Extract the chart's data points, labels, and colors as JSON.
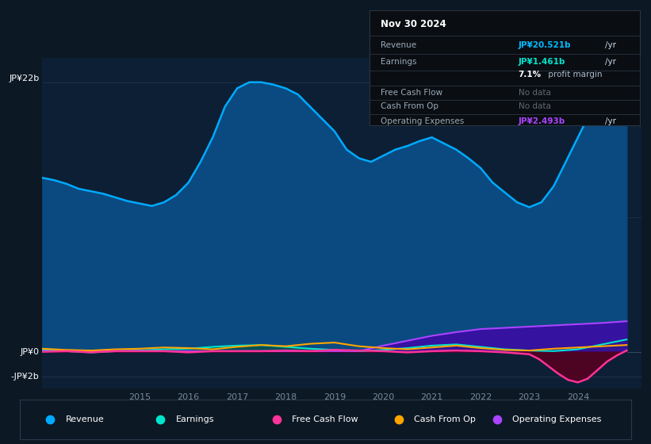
{
  "bg_color": "#0c1824",
  "plot_bg": "#0d1f35",
  "ylabel_top": "JP¥22b",
  "ylabel_zero": "JP¥0",
  "ylabel_neg": "-JP¥2b",
  "title_date": "Nov 30 2024",
  "x_ticks": [
    2015,
    2016,
    2017,
    2018,
    2019,
    2020,
    2021,
    2022,
    2023,
    2024
  ],
  "ylim_min": -3.0,
  "ylim_max": 24.0,
  "legend": [
    {
      "label": "Revenue",
      "color": "#00aaff"
    },
    {
      "label": "Earnings",
      "color": "#00e5cc"
    },
    {
      "label": "Free Cash Flow",
      "color": "#ff3399"
    },
    {
      "label": "Cash From Op",
      "color": "#ffa500"
    },
    {
      "label": "Operating Expenses",
      "color": "#aa44ff"
    }
  ],
  "revenue_x": [
    2013.0,
    2013.25,
    2013.5,
    2013.75,
    2014.0,
    2014.25,
    2014.5,
    2014.75,
    2015.0,
    2015.25,
    2015.5,
    2015.75,
    2016.0,
    2016.25,
    2016.5,
    2016.75,
    2017.0,
    2017.25,
    2017.5,
    2017.75,
    2018.0,
    2018.25,
    2018.5,
    2018.75,
    2019.0,
    2019.25,
    2019.5,
    2019.75,
    2020.0,
    2020.25,
    2020.5,
    2020.75,
    2021.0,
    2021.25,
    2021.5,
    2021.75,
    2022.0,
    2022.25,
    2022.5,
    2022.75,
    2023.0,
    2023.25,
    2023.5,
    2023.75,
    2024.0,
    2024.25,
    2024.5,
    2024.75,
    2025.0
  ],
  "revenue_y": [
    14.2,
    14.0,
    13.7,
    13.3,
    13.1,
    12.9,
    12.6,
    12.3,
    12.1,
    11.9,
    12.2,
    12.8,
    13.8,
    15.5,
    17.5,
    20.0,
    21.5,
    22.0,
    22.0,
    21.8,
    21.5,
    21.0,
    20.0,
    19.0,
    18.0,
    16.5,
    15.8,
    15.5,
    16.0,
    16.5,
    16.8,
    17.2,
    17.5,
    17.0,
    16.5,
    15.8,
    15.0,
    13.8,
    13.0,
    12.2,
    11.8,
    12.2,
    13.5,
    15.5,
    17.5,
    19.5,
    20.5,
    21.5,
    22.0
  ],
  "earnings_x": [
    2013.0,
    2013.5,
    2014.0,
    2014.5,
    2015.0,
    2015.5,
    2016.0,
    2016.5,
    2017.0,
    2017.5,
    2018.0,
    2018.5,
    2019.0,
    2019.5,
    2020.0,
    2020.5,
    2021.0,
    2021.5,
    2022.0,
    2022.5,
    2023.0,
    2023.5,
    2024.0,
    2024.5,
    2025.0
  ],
  "earnings_y": [
    0.15,
    0.05,
    -0.05,
    0.05,
    0.1,
    0.2,
    0.25,
    0.4,
    0.5,
    0.55,
    0.4,
    0.25,
    0.15,
    0.05,
    0.15,
    0.3,
    0.5,
    0.6,
    0.4,
    0.2,
    0.1,
    0.05,
    0.2,
    0.6,
    1.0
  ],
  "fcf_x": [
    2013.0,
    2013.5,
    2014.0,
    2014.5,
    2015.0,
    2015.5,
    2016.0,
    2016.5,
    2017.0,
    2017.5,
    2018.0,
    2018.5,
    2019.0,
    2019.5,
    2020.0,
    2020.5,
    2021.0,
    2021.5,
    2022.0,
    2022.5,
    2023.0,
    2023.2,
    2023.4,
    2023.6,
    2023.8,
    2024.0,
    2024.2,
    2024.4,
    2024.6,
    2024.8,
    2025.0
  ],
  "fcf_y": [
    0.0,
    0.05,
    -0.05,
    0.05,
    0.05,
    0.05,
    -0.05,
    0.05,
    0.05,
    0.05,
    0.1,
    0.05,
    0.15,
    0.1,
    0.05,
    -0.05,
    0.05,
    0.1,
    0.05,
    -0.05,
    -0.2,
    -0.6,
    -1.2,
    -1.8,
    -2.3,
    -2.5,
    -2.2,
    -1.5,
    -0.8,
    -0.3,
    0.1
  ],
  "cop_x": [
    2013.0,
    2013.5,
    2014.0,
    2014.5,
    2015.0,
    2015.5,
    2016.0,
    2016.5,
    2017.0,
    2017.5,
    2018.0,
    2018.5,
    2019.0,
    2019.5,
    2020.0,
    2020.5,
    2021.0,
    2021.5,
    2022.0,
    2022.5,
    2023.0,
    2023.5,
    2024.0,
    2024.5,
    2025.0
  ],
  "cop_y": [
    0.25,
    0.15,
    0.1,
    0.2,
    0.25,
    0.35,
    0.3,
    0.2,
    0.4,
    0.55,
    0.45,
    0.65,
    0.75,
    0.45,
    0.3,
    0.2,
    0.35,
    0.5,
    0.3,
    0.15,
    0.1,
    0.25,
    0.35,
    0.45,
    0.55
  ],
  "ope_x": [
    2013.0,
    2013.5,
    2014.0,
    2014.5,
    2015.0,
    2015.5,
    2016.0,
    2016.5,
    2017.0,
    2017.5,
    2018.0,
    2018.5,
    2019.0,
    2019.5,
    2020.0,
    2020.5,
    2021.0,
    2021.5,
    2022.0,
    2022.5,
    2023.0,
    2023.5,
    2024.0,
    2024.5,
    2025.0
  ],
  "ope_y": [
    0.05,
    0.05,
    0.05,
    0.05,
    0.05,
    0.05,
    0.05,
    0.05,
    0.05,
    0.05,
    0.05,
    0.05,
    0.05,
    0.05,
    0.5,
    0.9,
    1.3,
    1.6,
    1.85,
    1.95,
    2.05,
    2.15,
    2.25,
    2.35,
    2.49
  ]
}
